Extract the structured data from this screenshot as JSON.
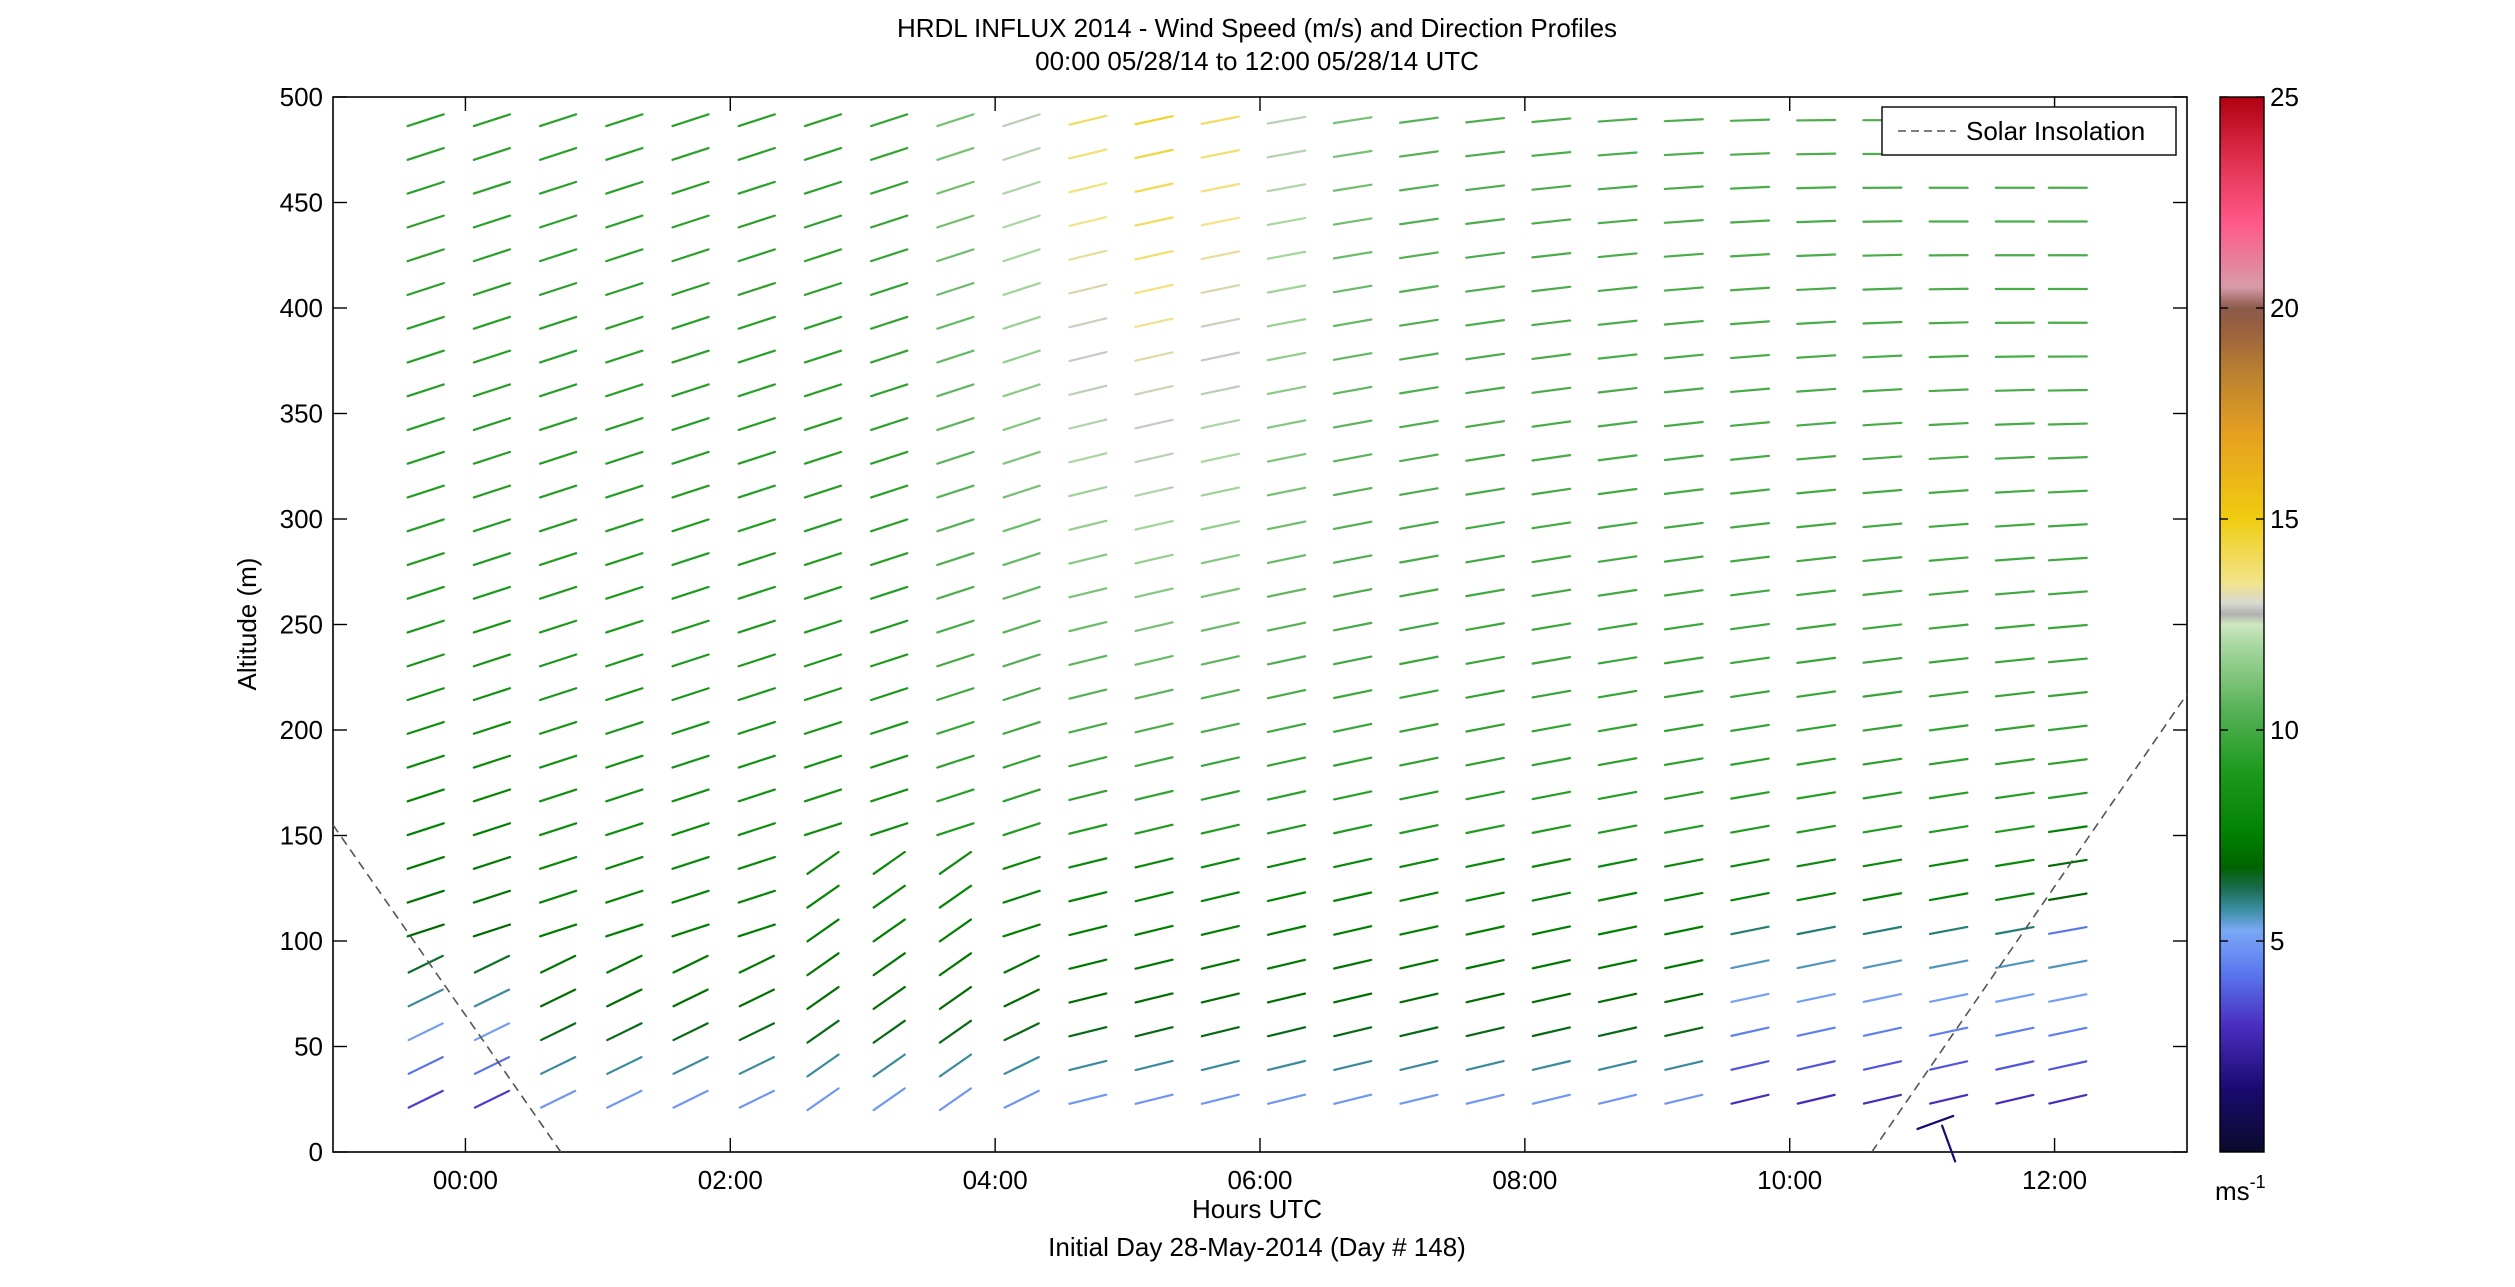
{
  "chart_data": {
    "type": "scatter",
    "title": "HRDL INFLUX 2014 - Wind Speed (m/s) and Direction Profiles",
    "subtitle": "00:00 05/28/14 to 12:00 05/28/14  UTC",
    "xlabel": "Hours UTC",
    "xlabel2": "Initial Day 28-May-2014 (Day # 148)",
    "ylabel": "Altitude (m)",
    "xlim": [
      -1,
      13
    ],
    "ylim": [
      0,
      500
    ],
    "xticks": [
      0,
      2,
      4,
      6,
      8,
      10,
      12
    ],
    "xtick_labels": [
      "00:00",
      "02:00",
      "04:00",
      "06:00",
      "08:00",
      "10:00",
      "12:00"
    ],
    "yticks": [
      0,
      50,
      100,
      150,
      200,
      250,
      300,
      350,
      400,
      450,
      500
    ],
    "ytick_labels": [
      "0",
      "50",
      "100",
      "150",
      "200",
      "250",
      "300",
      "350",
      "400",
      "450",
      "500"
    ],
    "colorbar": {
      "range": [
        0,
        25
      ],
      "ticks": [
        5,
        10,
        15,
        20,
        25
      ],
      "tick_labels": [
        "5",
        "10",
        "15",
        "20",
        "25"
      ],
      "unit_label": "ms",
      "unit_exp": "-1"
    },
    "legend": {
      "entries": [
        {
          "label": "Solar Insolation",
          "style": "dashed",
          "color": "#555555"
        }
      ],
      "placement": "top-right"
    },
    "grid": false,
    "series": [
      {
        "name": "Solar Insolation",
        "segments": [
          {
            "x": [
              -1.0,
              0.72
            ],
            "y": [
              155,
              0
            ]
          },
          {
            "x": [
              10.62,
              13.0
            ],
            "y": [
              0,
              217
            ]
          }
        ]
      }
    ],
    "wind_profiles": {
      "times": [
        -0.3,
        0.2,
        0.7,
        1.2,
        1.7,
        2.2,
        2.7,
        3.2,
        3.7,
        4.2,
        4.7,
        5.2,
        5.7,
        6.2,
        6.7,
        7.2,
        7.7,
        8.2,
        8.7,
        9.2,
        9.7,
        10.2,
        10.7,
        11.2,
        11.7,
        12.1
      ],
      "altitudes": [
        25,
        41,
        57,
        73,
        89,
        105,
        121,
        137,
        153,
        169,
        185,
        201,
        217,
        233,
        249,
        265,
        281,
        297,
        313,
        329,
        345,
        361,
        377,
        393,
        409,
        425,
        441,
        457,
        473,
        489
      ],
      "speed_model": "estimated from colours; lower-left blue/purple (~3-5 m/s), mid-levels green (~7-11 m/s), 04:30-06:00 at 300-490 m light green/yellow (~12-15 m/s)",
      "direction_model": "westerly-southwesterly, barbs tilted upward to the right, flattening with height after 05:00"
    }
  }
}
